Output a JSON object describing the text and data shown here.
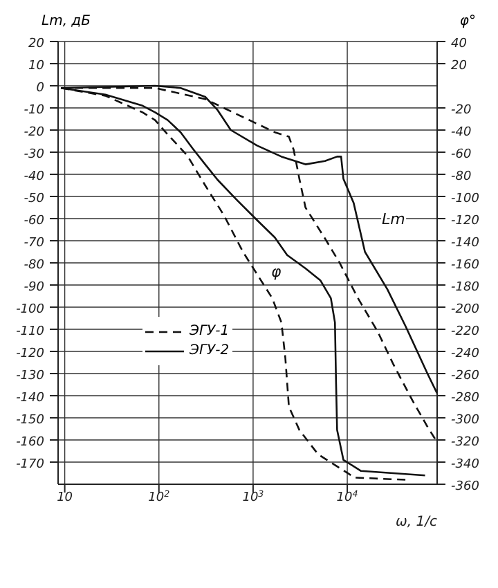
{
  "chart_data": {
    "type": "line",
    "xlabel": "ω, 1/c",
    "ylabel": "Lm, дБ",
    "y2label": "φ°",
    "log": "x",
    "grid": true,
    "legend": "center left",
    "xlim": [
      8.5,
      90000
    ],
    "xticks": [
      10,
      {
        "value": 100,
        "label": "10$^{2}$"
      },
      {
        "value": 1000,
        "label": "10$^{3}$"
      },
      {
        "value": 10000,
        "label": "10$^{4}$"
      }
    ],
    "ylim": [
      -180,
      20
    ],
    "yticks": [
      20,
      10,
      0,
      -10,
      -20,
      -30,
      -40,
      -50,
      -60,
      -70,
      -80,
      -90,
      -100,
      -110,
      -120,
      -130,
      -140,
      -150,
      -160,
      -170
    ],
    "y2lim": [
      -360,
      40
    ],
    "y2ticks": [
      40,
      20,
      -20,
      -40,
      -60,
      -80,
      -100,
      -120,
      -140,
      -160,
      -180,
      -200,
      -220,
      -240,
      -260,
      -280,
      -300,
      -320,
      -340,
      -360
    ],
    "annotations": [
      "Lm",
      "φ"
    ],
    "series": [
      {
        "name": "ЭГУ-1",
        "color": "#111111",
        "line_style": "dashed",
        "x": [
          9.1,
          91,
          310,
          1700,
          2400,
          2700,
          3100,
          3600,
          5800,
          8300,
          13000,
          21000,
          31000,
          49000,
          71000,
          90000
        ],
        "values": [
          -1,
          -1,
          -6,
          -21,
          -23,
          -29,
          -42,
          -55,
          -69,
          -80,
          -96,
          -111,
          -126,
          -142,
          -154,
          -161
        ]
      },
      {
        "name": "ЭГУ-2",
        "color": "#111111",
        "line_style": "solid",
        "x": [
          9.1,
          91,
          170,
          310,
          420,
          580,
          1100,
          2000,
          3600,
          5800,
          7800,
          8600,
          9100,
          11700,
          15400,
          26700,
          42000,
          71000,
          90000
        ],
        "values": [
          -1,
          0,
          -1,
          -5,
          -11,
          -20,
          -27,
          -32,
          -35.5,
          -34,
          -32,
          -32,
          -42,
          -53,
          -75,
          -92,
          -109,
          -130,
          -139
        ]
      },
      {
        "color": "#111111",
        "line_style": "solid",
        "axis": "y2",
        "x": [
          9.1,
          27,
          67,
          91,
          124,
          170,
          230,
          310,
          420,
          670,
          1060,
          1700,
          2300,
          3600,
          5200,
          6700,
          7400,
          7600,
          7800,
          9100,
          14000,
          67000
        ],
        "values": [
          -2,
          -8,
          -18,
          -24,
          -31,
          -42,
          -57,
          -71,
          -85,
          -103,
          -120,
          -137,
          -153,
          -165,
          -176,
          -192,
          -214,
          -268,
          -311,
          -338,
          -348,
          -352
        ]
      },
      {
        "color": "#111111",
        "line_style": "dashed",
        "axis": "y2",
        "x": [
          9.1,
          27,
          67,
          91,
          124,
          200,
          310,
          490,
          780,
          1060,
          1600,
          2000,
          2200,
          2400,
          3100,
          4900,
          12000,
          42000
        ],
        "values": [
          -2,
          -9,
          -24,
          -31,
          -44,
          -63,
          -90,
          -117,
          -150,
          -168,
          -192,
          -214,
          -246,
          -290,
          -311,
          -333,
          -354,
          -356
        ]
      }
    ]
  }
}
